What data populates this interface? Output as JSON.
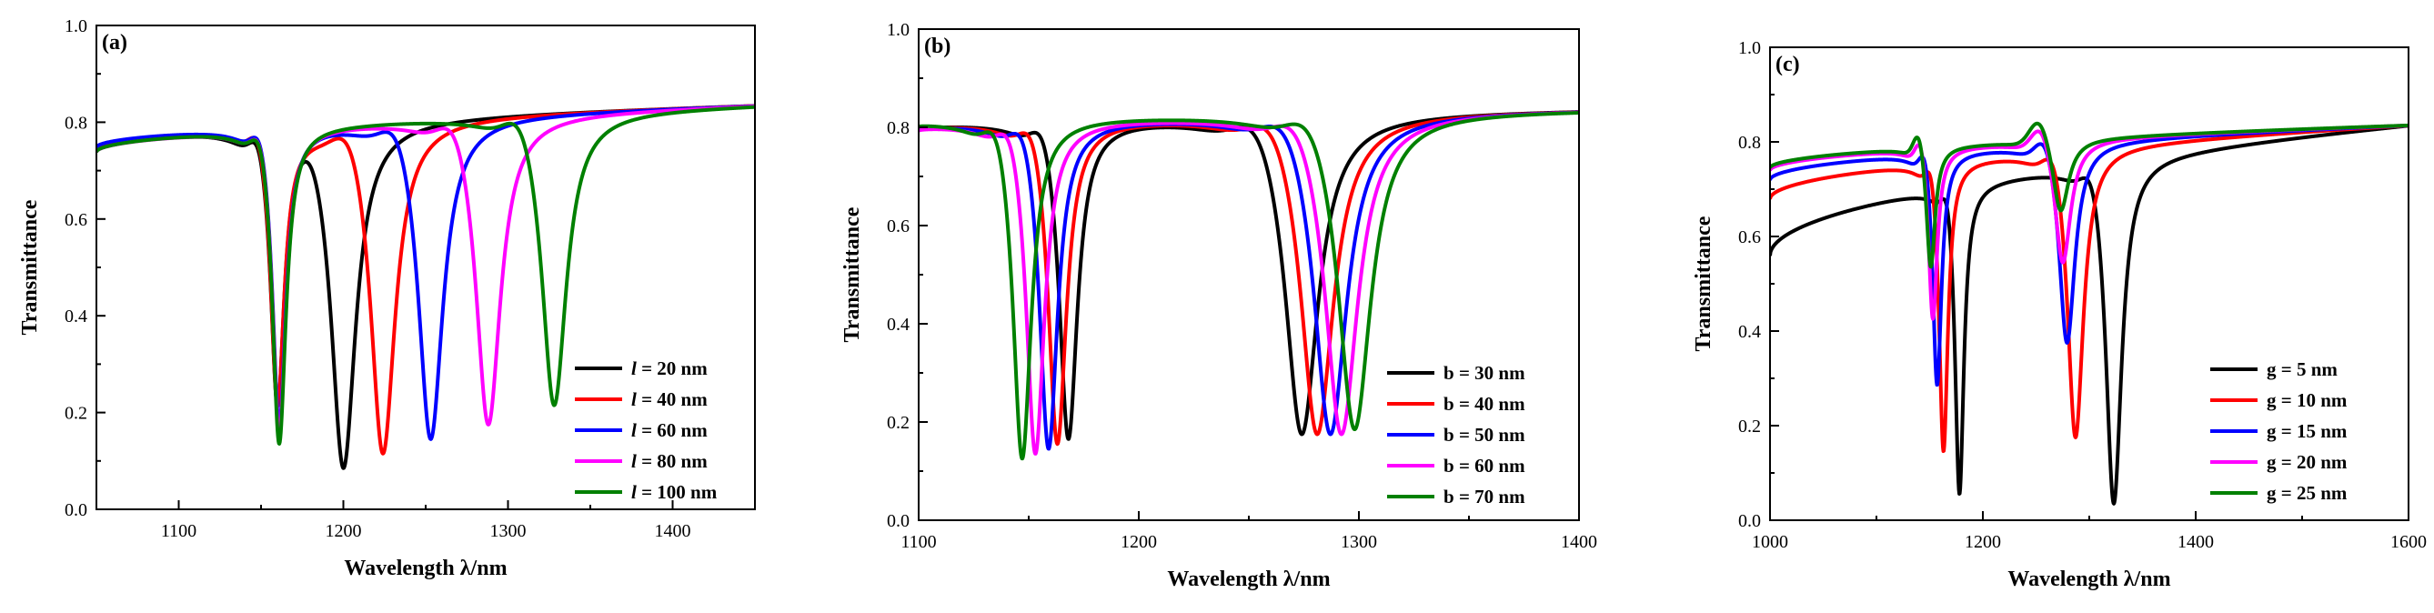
{
  "chart_data": [
    {
      "type": "line",
      "panel_label": "(a)",
      "xlabel": "Wavelength λ/nm",
      "ylabel": "Transmittance",
      "xlim": [
        1050,
        1450
      ],
      "ylim": [
        0.0,
        1.0
      ],
      "xticks": [
        1100,
        1200,
        1300,
        1400
      ],
      "yticks": [
        0.0,
        0.2,
        0.4,
        0.6,
        0.8,
        1.0
      ],
      "legend_position": "center-right",
      "series": [
        {
          "param": "l",
          "label_rest": " = 20 nm",
          "color": "#000000",
          "baseline": 0.75,
          "res1": {
            "center": 1160,
            "depth": 0.21
          },
          "res2": {
            "center": 1200,
            "depth": 0.08
          }
        },
        {
          "param": "l",
          "label_rest": " = 40 nm",
          "color": "#ff0000",
          "baseline": 0.75,
          "res1": {
            "center": 1160,
            "depth": 0.21
          },
          "res2": {
            "center": 1224,
            "depth": 0.11
          }
        },
        {
          "param": "l",
          "label_rest": " = 60 nm",
          "color": "#0000ff",
          "baseline": 0.75,
          "res1": {
            "center": 1161,
            "depth": 0.17
          },
          "res2": {
            "center": 1253,
            "depth": 0.14
          }
        },
        {
          "param": "l",
          "label_rest": " = 80 nm",
          "color": "#ff00ff",
          "baseline": 0.74,
          "res1": {
            "center": 1161,
            "depth": 0.15
          },
          "res2": {
            "center": 1288,
            "depth": 0.17
          }
        },
        {
          "param": "l",
          "label_rest": " = 100 nm",
          "color": "#008000",
          "baseline": 0.74,
          "res1": {
            "center": 1161,
            "depth": 0.13
          },
          "res2": {
            "center": 1328,
            "depth": 0.21
          }
        }
      ]
    },
    {
      "type": "line",
      "panel_label": "(b)",
      "xlabel": "Wavelength λ/nm",
      "ylabel": "Transmittance",
      "xlim": [
        1100,
        1400
      ],
      "ylim": [
        0.0,
        1.0
      ],
      "xticks": [
        1100,
        1200,
        1300,
        1400
      ],
      "yticks": [
        0.0,
        0.2,
        0.4,
        0.6,
        0.8,
        1.0
      ],
      "legend_position": "bottom-right",
      "series": [
        {
          "param": "b",
          "label_rest": " = 30 nm",
          "color": "#000000",
          "baseline": 0.8,
          "res1": {
            "center": 1168,
            "depth": 0.16
          },
          "res2": {
            "center": 1274,
            "depth": 0.17
          }
        },
        {
          "param": "b",
          "label_rest": " = 40 nm",
          "color": "#ff0000",
          "baseline": 0.8,
          "res1": {
            "center": 1163,
            "depth": 0.15
          },
          "res2": {
            "center": 1281,
            "depth": 0.17
          }
        },
        {
          "param": "b",
          "label_rest": " = 50 nm",
          "color": "#0000ff",
          "baseline": 0.8,
          "res1": {
            "center": 1159,
            "depth": 0.14
          },
          "res2": {
            "center": 1287,
            "depth": 0.17
          }
        },
        {
          "param": "b",
          "label_rest": " = 60 nm",
          "color": "#ff00ff",
          "baseline": 0.8,
          "res1": {
            "center": 1153,
            "depth": 0.13
          },
          "res2": {
            "center": 1292,
            "depth": 0.17
          }
        },
        {
          "param": "b",
          "label_rest": " = 70 nm",
          "color": "#008000",
          "baseline": 0.81,
          "res1": {
            "center": 1147,
            "depth": 0.12
          },
          "res2": {
            "center": 1298,
            "depth": 0.18
          }
        }
      ]
    },
    {
      "type": "line",
      "panel_label": "(c)",
      "xlabel": "Wavelength λ/nm",
      "ylabel": "Transmittance",
      "xlim": [
        1000,
        1600
      ],
      "ylim": [
        0.0,
        1.0
      ],
      "xticks": [
        1000,
        1200,
        1400,
        1600
      ],
      "yticks": [
        0.0,
        0.2,
        0.4,
        0.6,
        0.8,
        1.0
      ],
      "legend_position": "bottom-right",
      "series": [
        {
          "param": "g",
          "label_rest": " = 5 nm",
          "color": "#000000",
          "baseline": 0.56,
          "res1": {
            "center": 1178,
            "depth": 0.05
          },
          "res2": {
            "center": 1323,
            "depth": 0.03
          }
        },
        {
          "param": "g",
          "label_rest": " = 10 nm",
          "color": "#ff0000",
          "baseline": 0.68,
          "res1": {
            "center": 1163,
            "depth": 0.14
          },
          "res2": {
            "center": 1287,
            "depth": 0.17
          }
        },
        {
          "param": "g",
          "label_rest": " = 15 nm",
          "color": "#0000ff",
          "baseline": 0.72,
          "res1": {
            "center": 1157,
            "depth": 0.28
          },
          "res2": {
            "center": 1279,
            "depth": 0.37
          }
        },
        {
          "param": "g",
          "label_rest": " = 20 nm",
          "color": "#ff00ff",
          "baseline": 0.74,
          "res1": {
            "center": 1153,
            "depth": 0.42
          },
          "res2": {
            "center": 1275,
            "depth": 0.54
          }
        },
        {
          "param": "g",
          "label_rest": " = 25 nm",
          "color": "#008000",
          "baseline": 0.745,
          "res1": {
            "center": 1151,
            "depth": 0.53
          },
          "res2": {
            "center": 1273,
            "depth": 0.65
          }
        }
      ]
    }
  ]
}
